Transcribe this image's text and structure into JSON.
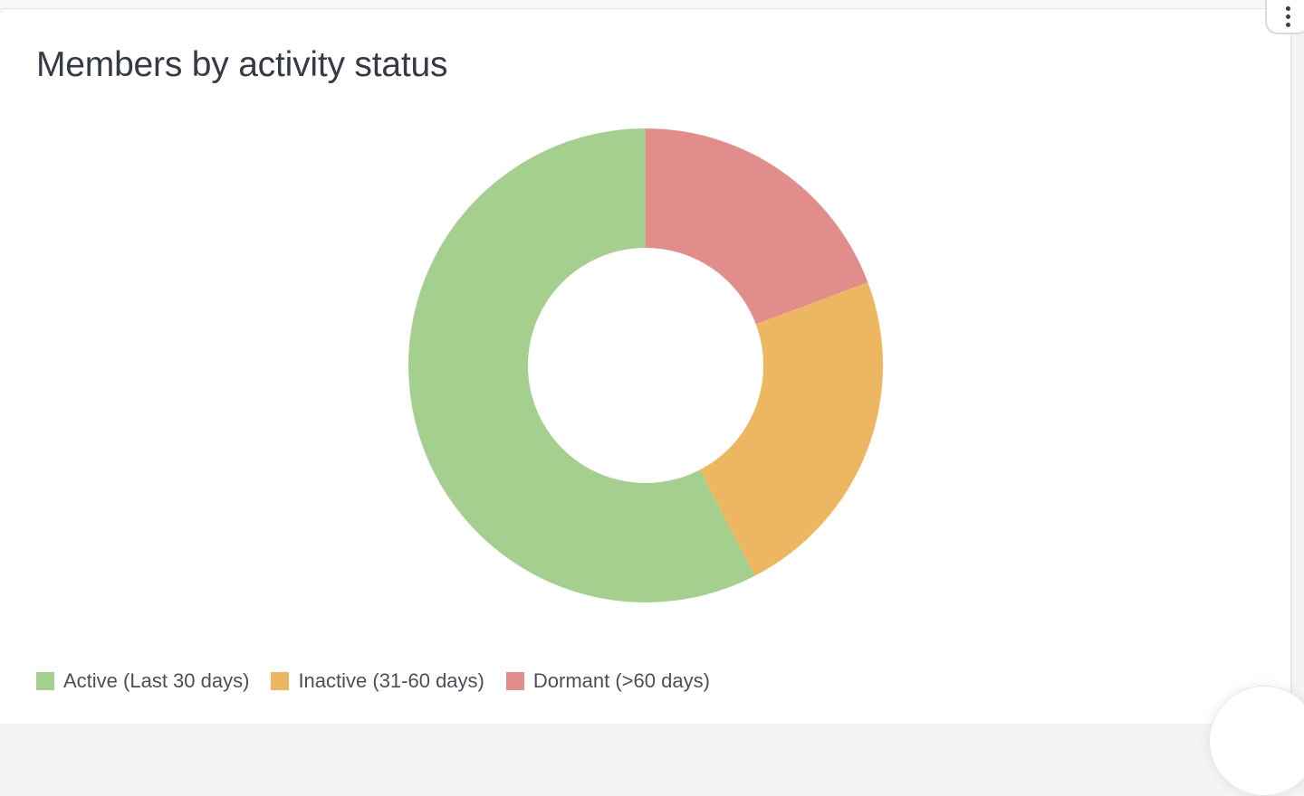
{
  "card": {
    "title": "Members by activity status",
    "menu_icon": "more-vertical-icon"
  },
  "colors": {
    "active": "#a5cf8e",
    "inactive": "#edb762",
    "dormant": "#e18d8b"
  },
  "legend": [
    {
      "label": "Active (Last 30 days)",
      "color": "#a5cf8e"
    },
    {
      "label": "Inactive (31-60 days)",
      "color": "#edb762"
    },
    {
      "label": "Dormant (>60 days)",
      "color": "#e18d8b"
    }
  ],
  "chart_data": {
    "type": "pie",
    "subtype": "doughnut",
    "title": "Members by activity status",
    "categories": [
      "Active (Last 30 days)",
      "Inactive (31-60 days)",
      "Dormant (>60 days)"
    ],
    "values": [
      57.6,
      23.1,
      19.3
    ],
    "unit": "percent (estimated from slice angles)",
    "colors": [
      "#a5cf8e",
      "#edb762",
      "#e18d8b"
    ],
    "legend_position": "bottom-left",
    "xlabel": "",
    "ylabel": ""
  }
}
